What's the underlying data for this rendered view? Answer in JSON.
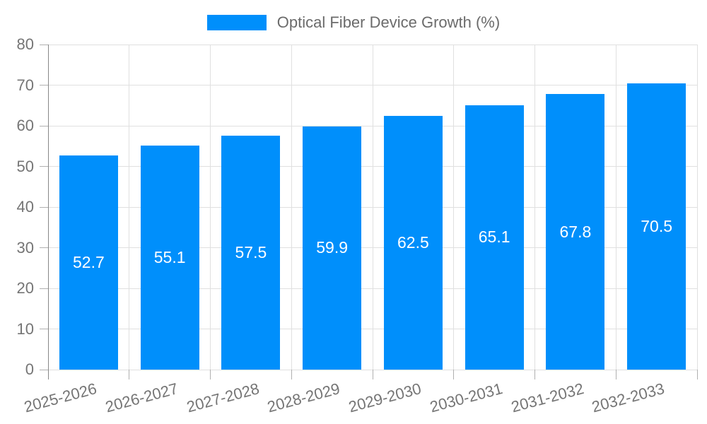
{
  "chart_data": {
    "type": "bar",
    "title": "",
    "legend": {
      "label": "Optical Fiber Device Growth (%)",
      "position": "top"
    },
    "categories": [
      "2025-2026",
      "2026-2027",
      "2027-2028",
      "2028-2029",
      "2029-2030",
      "2030-2031",
      "2031-2032",
      "2032-2033"
    ],
    "series": [
      {
        "name": "Optical Fiber Device Growth (%)",
        "values": [
          52.7,
          55.1,
          57.5,
          59.9,
          62.5,
          65.1,
          67.8,
          70.5
        ],
        "data_labels": [
          "52.7",
          "55.1",
          "57.5",
          "59.9",
          "62.5",
          "65.1",
          "67.8",
          "70.5"
        ]
      }
    ],
    "xlabel": "",
    "ylabel": "",
    "ylim": [
      0,
      80
    ],
    "yticks": [
      0,
      10,
      20,
      30,
      40,
      50,
      60,
      70,
      80
    ],
    "grid": true,
    "colors": {
      "bar": "#008FFB",
      "bar_value_text": "#ffffff",
      "gridline": "#e0e0e0",
      "axis_line": "#888888",
      "tick": "#b0b0b0",
      "axis_label_text": "#757575",
      "legend_text": "#6b6b6b",
      "background": "#ffffff"
    }
  }
}
